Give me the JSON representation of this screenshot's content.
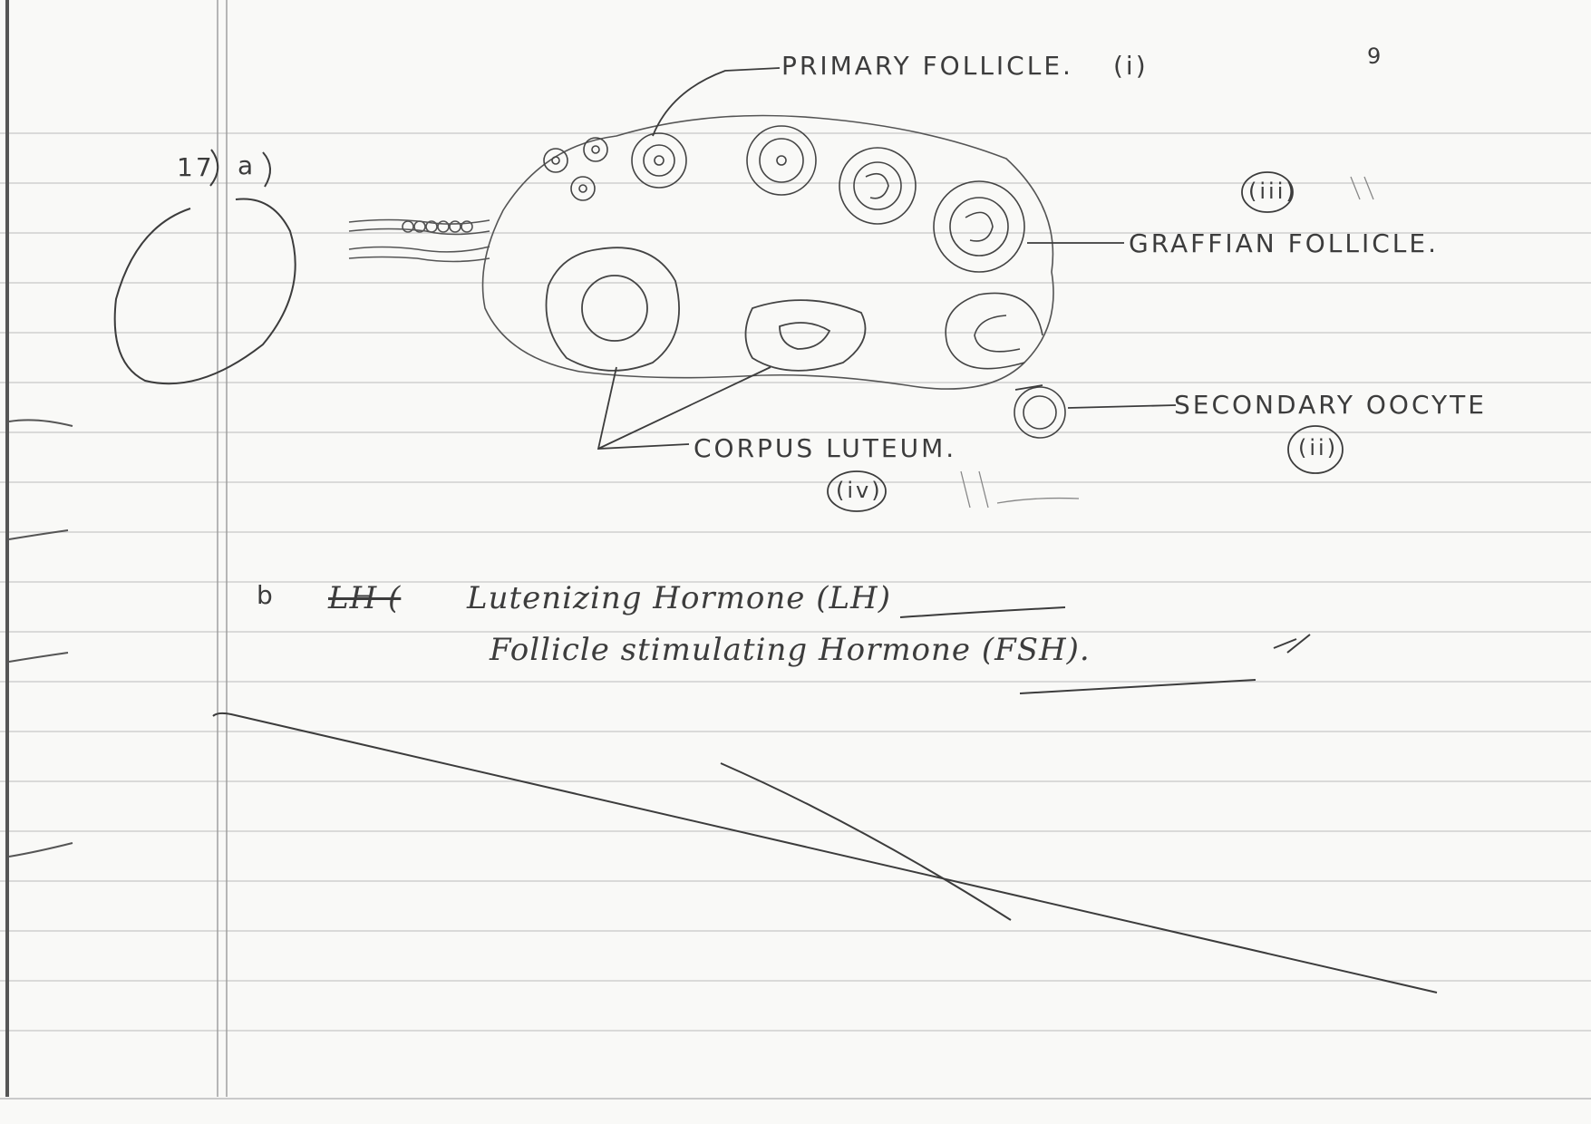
{
  "page_number": "9",
  "question": {
    "number": "17",
    "part_a": "a",
    "part_b": "b"
  },
  "diagram": {
    "labels": {
      "primary_follicle": "PRIMARY FOLLICLE.",
      "primary_follicle_marker": "(i)",
      "graffian_follicle": "GRAFFIAN FOLLICLE.",
      "graffian_follicle_marker": "(iii)",
      "secondary_oocyte": "SECONDARY OOCYTE",
      "secondary_oocyte_marker": "(ii)",
      "corpus_luteum": "CORPUS LUTEUM.",
      "corpus_luteum_marker": "(iv)"
    }
  },
  "answer_b": {
    "struck_text": "LH (",
    "line1": "Lutenizing Hormone (LH)",
    "line2": "Follicle stimulating Hormone (FSH)."
  },
  "colors": {
    "paper": "#f9f9f7",
    "rule_line": "#cfcfcf",
    "ink": "#3c3c3c",
    "margin_line": "#9a9a9a"
  }
}
